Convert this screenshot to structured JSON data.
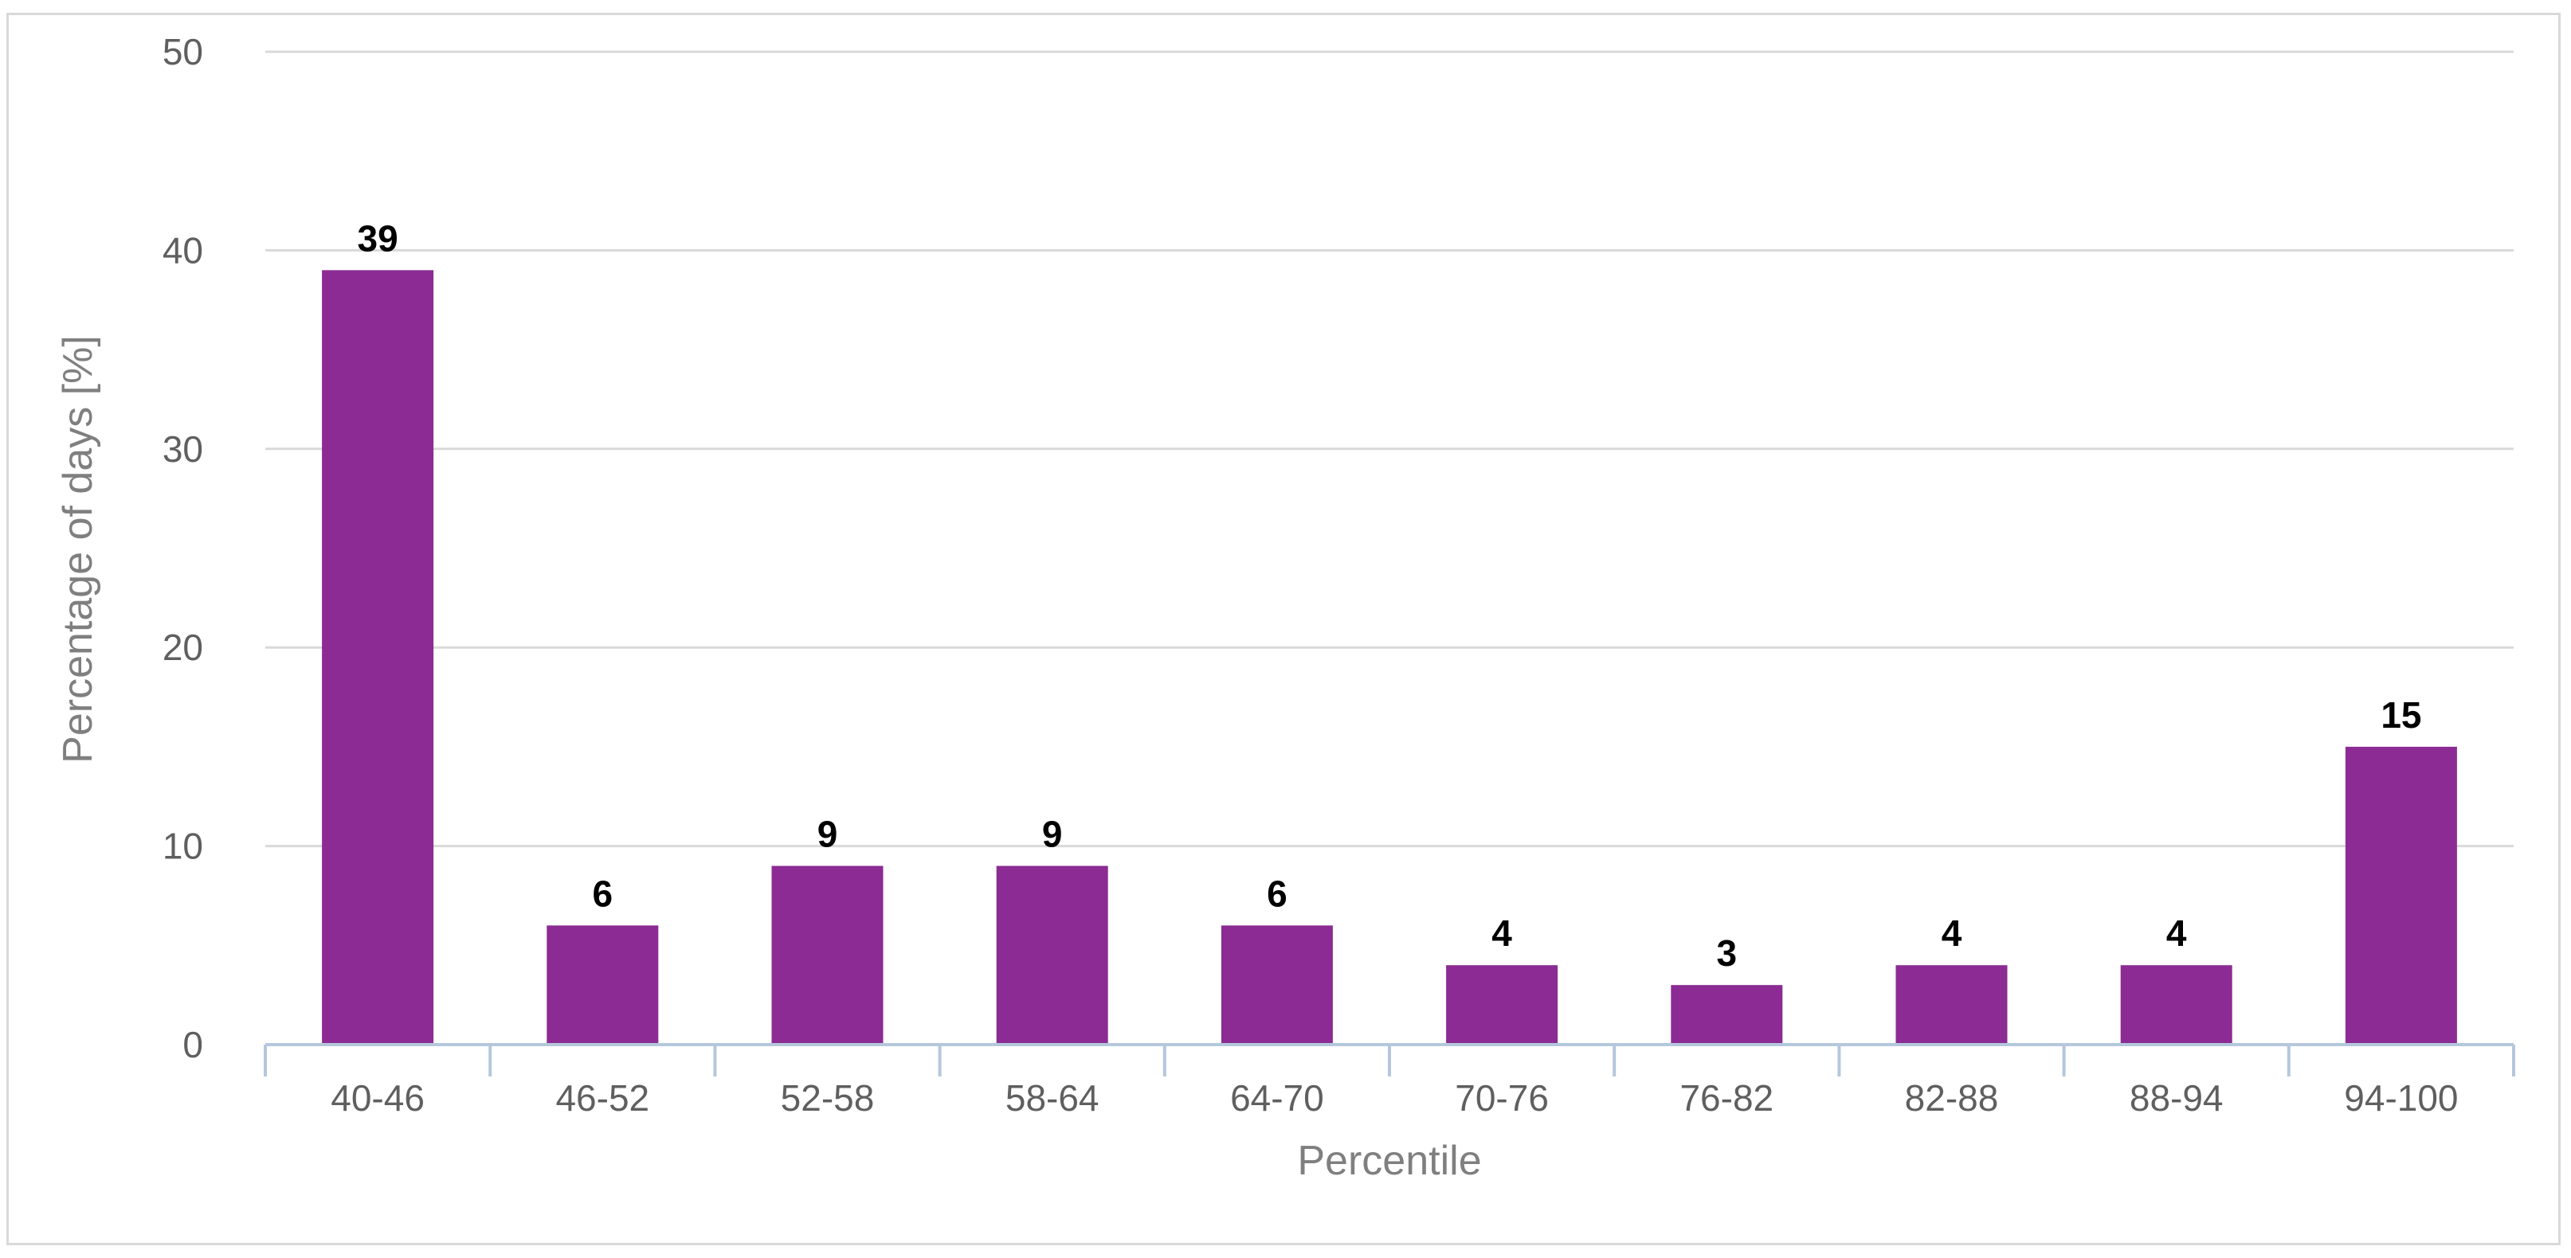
{
  "chart_data": {
    "type": "bar",
    "title": "",
    "xlabel": "Percentile",
    "ylabel": "Percentage of days [%]",
    "categories": [
      "40-46",
      "46-52",
      "52-58",
      "58-64",
      "64-70",
      "70-76",
      "76-82",
      "82-88",
      "88-94",
      "94-100"
    ],
    "values": [
      39,
      6,
      9,
      9,
      6,
      4,
      3,
      4,
      4,
      15
    ],
    "data_labels": [
      "39",
      "6",
      "9",
      "9",
      "6",
      "4",
      "3",
      "4",
      "4",
      "15"
    ],
    "ylim": [
      0,
      50
    ],
    "y_ticks": [
      0,
      10,
      20,
      30,
      40,
      50
    ],
    "y_tick_labels": [
      "0",
      "10",
      "20",
      "30",
      "40",
      "50"
    ],
    "grid": true,
    "legend": "none",
    "colors": {
      "bar": "#8b2b93",
      "grid": "#d9d9d9",
      "x_axis": "#b4c7dc"
    }
  }
}
